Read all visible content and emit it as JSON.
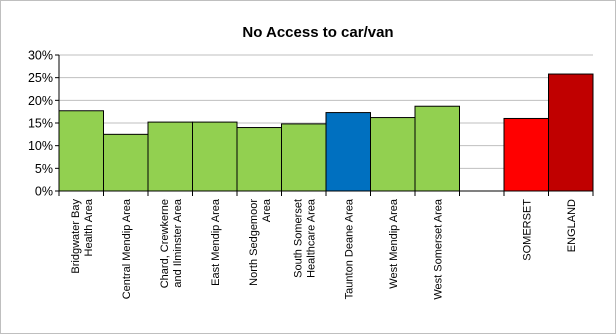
{
  "chart_data": {
    "type": "bar",
    "title": "No Access to car/van",
    "xlabel": "",
    "ylabel": "",
    "ylim": [
      0,
      30
    ],
    "yticks": [
      "0%",
      "5%",
      "10%",
      "15%",
      "20%",
      "25%",
      "30%"
    ],
    "grid": true,
    "legend": "none",
    "categories": [
      [
        "Bridgwater Bay",
        "Health Area"
      ],
      [
        "Central Mendip Area"
      ],
      [
        "Chard, Crewkerne",
        "and Ilminster Area"
      ],
      [
        "East Mendip Area"
      ],
      [
        "North Sedgemoor",
        "Area"
      ],
      [
        "South Somerset",
        "Healthcare Area"
      ],
      [
        "Taunton Deane Area"
      ],
      [
        "West Mendip Area"
      ],
      [
        "West Somerset Area"
      ],
      [],
      [
        "SOMERSET"
      ],
      [
        "ENGLAND"
      ]
    ],
    "values": [
      17.7,
      12.5,
      15.2,
      15.2,
      14.0,
      14.8,
      17.3,
      16.2,
      18.7,
      null,
      16.0,
      25.8
    ],
    "colors": {
      "area": "#92d050",
      "highlight": "#0070c0",
      "somerset": "#ff0000",
      "england": "#c00000",
      "bar_edge": "#000000",
      "grid": "#bfbfbf",
      "axis": "#000000"
    },
    "bar_color_keys": [
      "area",
      "area",
      "area",
      "area",
      "area",
      "area",
      "highlight",
      "area",
      "area",
      null,
      "somerset",
      "england"
    ]
  }
}
